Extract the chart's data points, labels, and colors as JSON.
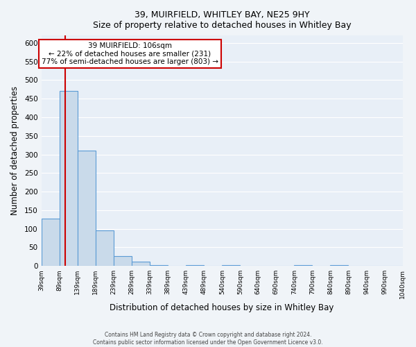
{
  "title": "39, MUIRFIELD, WHITLEY BAY, NE25 9HY",
  "subtitle": "Size of property relative to detached houses in Whitley Bay",
  "xlabel": "Distribution of detached houses by size in Whitley Bay",
  "ylabel": "Number of detached properties",
  "bar_color": "#c9daea",
  "bar_edge_color": "#5b9bd5",
  "background_color": "#e8eff7",
  "grid_color": "#ffffff",
  "fig_background": "#f0f4f8",
  "bin_edges": [
    39,
    89,
    139,
    189,
    239,
    289,
    339,
    389,
    439,
    489,
    540,
    590,
    640,
    690,
    740,
    790,
    840,
    890,
    940,
    990,
    1040
  ],
  "bin_labels": [
    "39sqm",
    "89sqm",
    "139sqm",
    "189sqm",
    "239sqm",
    "289sqm",
    "339sqm",
    "389sqm",
    "439sqm",
    "489sqm",
    "540sqm",
    "590sqm",
    "640sqm",
    "690sqm",
    "740sqm",
    "790sqm",
    "840sqm",
    "890sqm",
    "940sqm",
    "990sqm",
    "1040sqm"
  ],
  "bar_heights": [
    128,
    470,
    310,
    96,
    27,
    11,
    2,
    0,
    3,
    0,
    3,
    0,
    0,
    0,
    3,
    0,
    3,
    0,
    0,
    0
  ],
  "ylim": [
    0,
    620
  ],
  "yticks": [
    0,
    50,
    100,
    150,
    200,
    250,
    300,
    350,
    400,
    450,
    500,
    550,
    600
  ],
  "property_line_x": 106,
  "property_line_color": "#cc0000",
  "annotation_title": "39 MUIRFIELD: 106sqm",
  "annotation_line2": "← 22% of detached houses are smaller (231)",
  "annotation_line3": "77% of semi-detached houses are larger (803) →",
  "annotation_box_color": "#ffffff",
  "annotation_box_edge_color": "#cc0000",
  "footer_line1": "Contains HM Land Registry data © Crown copyright and database right 2024.",
  "footer_line2": "Contains public sector information licensed under the Open Government Licence v3.0."
}
